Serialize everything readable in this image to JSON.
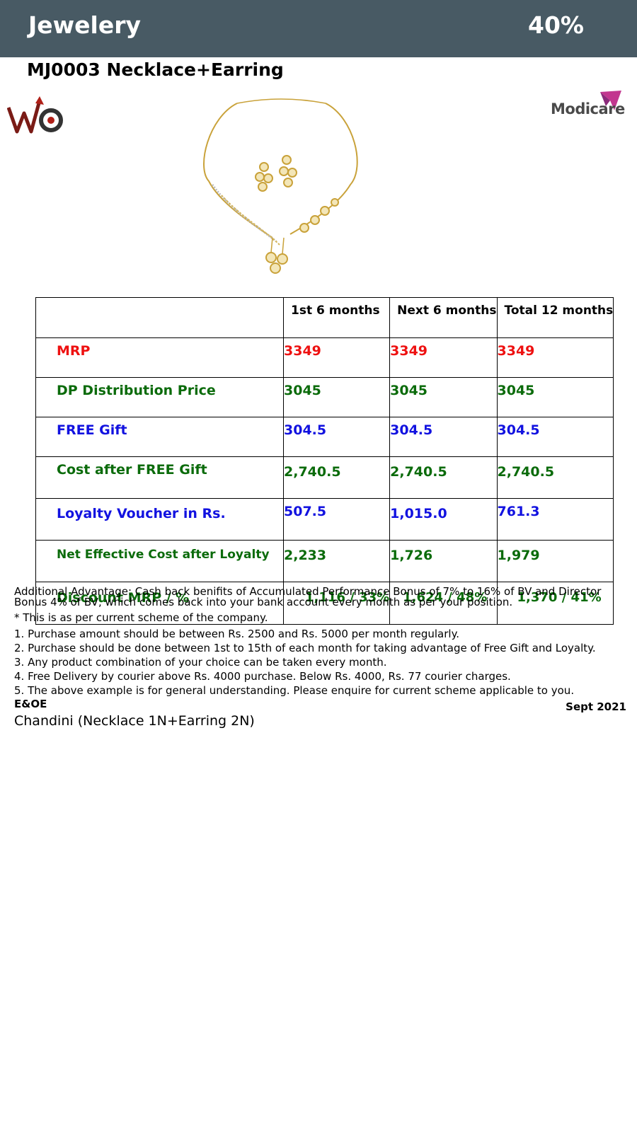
{
  "header": {
    "category": "Jewelery",
    "discount": "40%"
  },
  "product": {
    "title": "MJ0003 Necklace+Earring"
  },
  "logos": {
    "left": "WC",
    "right": "Modicare"
  },
  "table": {
    "columns": [
      "",
      "1st 6 months",
      "Next 6 months",
      "Total 12 months"
    ],
    "rows": [
      {
        "label": "MRP",
        "values": [
          "3349",
          "3349",
          "3349"
        ],
        "color": "#ee1111"
      },
      {
        "label": "DP Distribution Price",
        "values": [
          "3045",
          "3045",
          "3045"
        ],
        "color": "#0b6b0b"
      },
      {
        "label": "FREE Gift",
        "values": [
          "304.5",
          "304.5",
          "304.5"
        ],
        "color": "#1212e0"
      },
      {
        "label": "Cost after FREE Gift",
        "values": [
          "2,740.5",
          "2,740.5",
          "2,740.5"
        ],
        "color": "#0b6b0b"
      },
      {
        "label": "Loyalty Voucher in Rs.",
        "values": [
          "507.5",
          "1,015.0",
          "761.3"
        ],
        "color": "#1212e0"
      },
      {
        "label": "Net Effective Cost after Loyalty",
        "values": [
          "2,233",
          "1,726",
          "1,979"
        ],
        "color": "#0b6b0b"
      },
      {
        "label": "Discount MRP / %",
        "values": [
          "1,116 / 33%",
          "1,624 / 48%",
          "1,370 / 41%"
        ],
        "color": "#0b6b0b"
      }
    ]
  },
  "notes": {
    "advantage": "Additional Advantage: Cash back benifits of Accumulated Performance Bonus of 7% to 16% of BV and Director Bonus 4% of BV, which comes back into your bank account every month as per your position.",
    "scheme_note": "* This is as per current scheme of the company.",
    "points": [
      "1. Purchase amount should be between Rs. 2500 and Rs. 5000 per month regularly.",
      "2. Purchase should be done between 1st to 15th of each month for taking advantage of Free Gift and Loyalty.",
      "3. Any product combination of your choice can be taken every month.",
      "4. Free Delivery by courier above Rs. 4000 purchase. Below Rs. 4000, Rs. 77 courier charges.",
      "5. The above example is for general understanding. Please enquire for current scheme applicable to you."
    ],
    "eoe": "E&OE",
    "date": "Sept 2021"
  },
  "footer": {
    "text": "Chandini (Necklace 1N+Earring 2N)"
  }
}
